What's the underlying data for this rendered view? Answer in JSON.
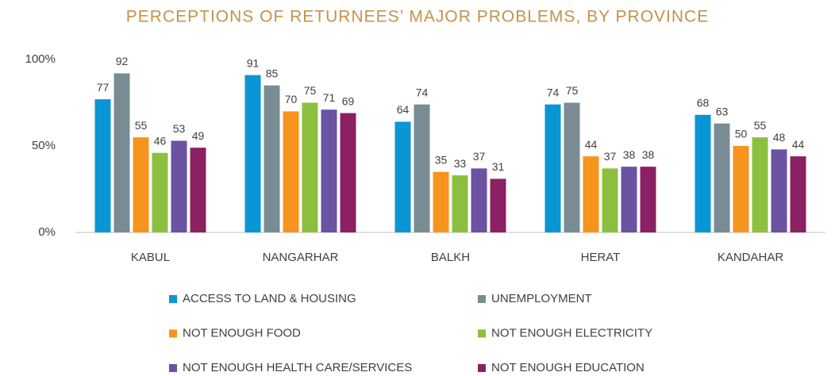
{
  "chart_data": {
    "type": "bar",
    "title": "PERCEPTIONS OF RETURNEES’ MAJOR PROBLEMS, BY PROVINCE",
    "categories": [
      "KABUL",
      "NANGARHAR",
      "BALKH",
      "HERAT",
      "KANDAHAR"
    ],
    "series": [
      {
        "name": "ACCESS TO LAND & HOUSING",
        "color": "#0a96d4",
        "values": [
          77,
          91,
          64,
          74,
          68
        ]
      },
      {
        "name": "UNEMPLOYMENT",
        "color": "#7a8c93",
        "values": [
          92,
          85,
          74,
          75,
          63
        ]
      },
      {
        "name": "NOT ENOUGH FOOD",
        "color": "#f7941d",
        "values": [
          55,
          70,
          35,
          44,
          50
        ]
      },
      {
        "name": "NOT ENOUGH ELECTRICITY",
        "color": "#8cbf3f",
        "values": [
          46,
          75,
          33,
          37,
          55
        ]
      },
      {
        "name": "NOT ENOUGH HEALTH CARE/SERVICES",
        "color": "#6b52a3",
        "values": [
          53,
          71,
          37,
          38,
          48
        ]
      },
      {
        "name": "NOT ENOUGH EDUCATION",
        "color": "#8b2062",
        "values": [
          49,
          69,
          31,
          38,
          44
        ]
      }
    ],
    "ylim": [
      0,
      100
    ],
    "yticks": [
      {
        "value": 0,
        "label": "0%"
      },
      {
        "value": 50,
        "label": "50%"
      },
      {
        "value": 100,
        "label": "100%"
      }
    ],
    "grid": false
  }
}
